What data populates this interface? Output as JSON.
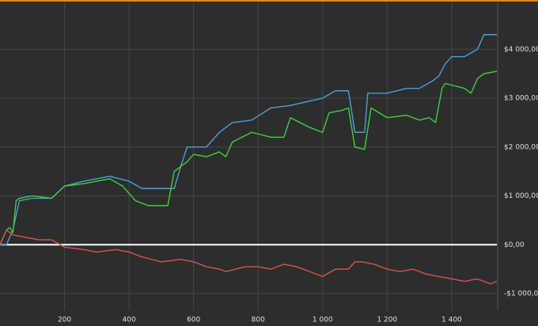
{
  "chart_data": {
    "type": "line",
    "xlim": [
      0,
      1540
    ],
    "ylim": [
      -1340,
      4960
    ],
    "xticks": [
      200,
      400,
      600,
      800,
      {
        "value": 1000,
        "label": "1 000"
      },
      {
        "value": 1200,
        "label": "1 200"
      },
      {
        "value": 1400,
        "label": "1 400"
      }
    ],
    "yticks": [
      {
        "value": -1000,
        "label": "-$1 000,00"
      },
      {
        "value": 0,
        "label": "$0,00"
      },
      {
        "value": 1000,
        "label": "$1 000,00"
      },
      {
        "value": 2000,
        "label": "$2 000,00"
      },
      {
        "value": 3000,
        "label": "$3 000,00"
      },
      {
        "value": 4000,
        "label": "$4 000,00"
      }
    ],
    "grid": true,
    "series": [
      {
        "color": "#4a9fd8",
        "x": [
          0,
          20,
          40,
          60,
          100,
          160,
          200,
          260,
          300,
          340,
          400,
          440,
          500,
          540,
          560,
          580,
          640,
          680,
          720,
          780,
          840,
          900,
          1000,
          1040,
          1080,
          1100,
          1130,
          1140,
          1200,
          1260,
          1300,
          1340,
          1360,
          1380,
          1400,
          1440,
          1480,
          1500,
          1540
        ],
        "values": [
          0,
          0,
          300,
          900,
          950,
          950,
          1200,
          1300,
          1350,
          1400,
          1300,
          1150,
          1150,
          1150,
          1600,
          2000,
          2000,
          2300,
          2500,
          2550,
          2800,
          2850,
          3000,
          3150,
          3150,
          2300,
          2300,
          3100,
          3100,
          3200,
          3200,
          3350,
          3450,
          3700,
          3850,
          3850,
          4000,
          4300,
          4300
        ]
      },
      {
        "color": "#3fcf3f",
        "x": [
          0,
          20,
          30,
          40,
          50,
          60,
          100,
          160,
          200,
          260,
          300,
          340,
          380,
          420,
          460,
          500,
          520,
          540,
          580,
          600,
          640,
          680,
          700,
          720,
          780,
          840,
          880,
          900,
          960,
          1000,
          1020,
          1060,
          1080,
          1100,
          1130,
          1150,
          1200,
          1260,
          1300,
          1330,
          1350,
          1370,
          1380,
          1440,
          1460,
          1480,
          1500,
          1540
        ],
        "values": [
          0,
          300,
          350,
          250,
          900,
          950,
          1000,
          950,
          1200,
          1250,
          1300,
          1350,
          1200,
          900,
          800,
          800,
          800,
          1500,
          1700,
          1850,
          1800,
          1900,
          1800,
          2100,
          2300,
          2200,
          2200,
          2600,
          2400,
          2300,
          2700,
          2750,
          2800,
          2000,
          1950,
          2800,
          2600,
          2650,
          2550,
          2600,
          2500,
          3200,
          3300,
          3200,
          3100,
          3400,
          3500,
          3550
        ]
      },
      {
        "color": "#d9534f",
        "x": [
          0,
          20,
          40,
          80,
          120,
          160,
          200,
          260,
          300,
          360,
          400,
          440,
          500,
          560,
          600,
          640,
          680,
          700,
          760,
          800,
          840,
          880,
          920,
          960,
          1000,
          1040,
          1080,
          1100,
          1120,
          1160,
          1200,
          1240,
          1280,
          1320,
          1360,
          1400,
          1440,
          1480,
          1520,
          1540
        ],
        "values": [
          0,
          300,
          200,
          150,
          100,
          100,
          -50,
          -100,
          -150,
          -100,
          -150,
          -250,
          -350,
          -300,
          -350,
          -450,
          -500,
          -550,
          -450,
          -450,
          -500,
          -400,
          -450,
          -550,
          -650,
          -500,
          -500,
          -350,
          -350,
          -400,
          -500,
          -550,
          -500,
          -600,
          -650,
          -700,
          -750,
          -700,
          -800,
          -750
        ]
      }
    ]
  }
}
